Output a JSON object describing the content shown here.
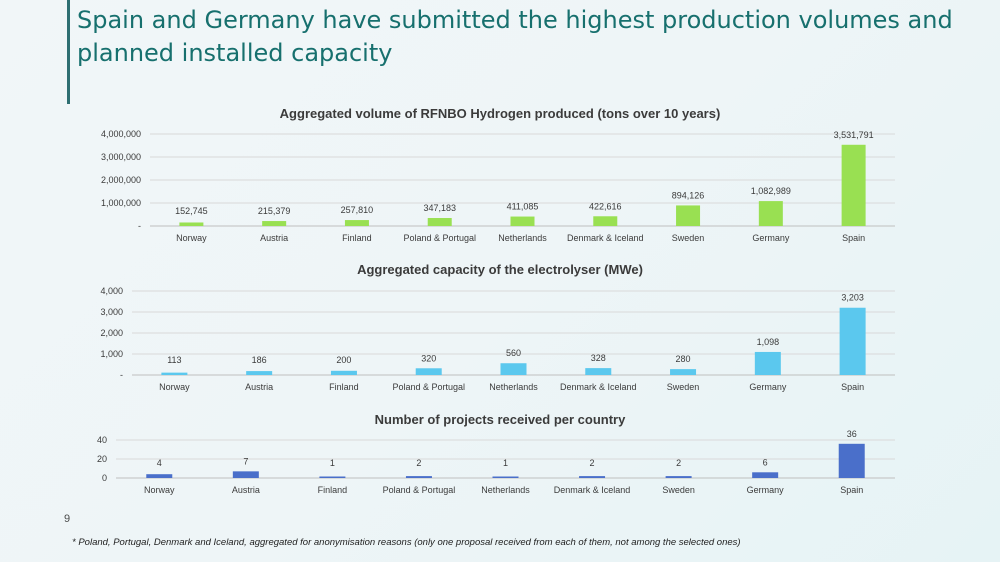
{
  "slide": {
    "title": "Spain and Germany have submitted the highest production volumes and planned installed capacity",
    "page_number": "9",
    "footnote": "* Poland, Portugal, Denmark and Iceland, aggregated for anonymisation reasons (only one proposal received from each of them, not among the selected ones)",
    "accent_color": "#2e6f72",
    "title_color": "#17706e"
  },
  "chart_data": [
    {
      "type": "bar",
      "title": "Aggregated volume of RFNBO Hydrogen produced (tons over 10 years)",
      "categories": [
        "Norway",
        "Austria",
        "Finland",
        "Poland & Portugal",
        "Netherlands",
        "Denmark & Iceland",
        "Sweden",
        "Germany",
        "Spain"
      ],
      "values": [
        152745,
        215379,
        257810,
        347183,
        411085,
        422616,
        894126,
        1082989,
        3531791
      ],
      "value_labels": [
        "152,745",
        "215,379",
        "257,810",
        "347,183",
        "411,085",
        "422,616",
        "894,126",
        "1,082,989",
        "3,531,791"
      ],
      "yticks": [
        "-",
        "1,000,000",
        "2,000,000",
        "3,000,000",
        "4,000,000"
      ],
      "ylim": [
        0,
        4000000
      ],
      "color": "#99e052",
      "grid": true
    },
    {
      "type": "bar",
      "title": "Aggregated capacity of the electrolyser (MWe)",
      "categories": [
        "Norway",
        "Austria",
        "Finland",
        "Poland & Portugal",
        "Netherlands",
        "Denmark & Iceland",
        "Sweden",
        "Germany",
        "Spain"
      ],
      "values": [
        113,
        186,
        200,
        320,
        560,
        328,
        280,
        1098,
        3203
      ],
      "value_labels": [
        "113",
        "186",
        "200",
        "320",
        "560",
        "328",
        "280",
        "1,098",
        "3,203"
      ],
      "yticks": [
        "-",
        "1,000",
        "2,000",
        "3,000",
        "4,000"
      ],
      "ylim": [
        0,
        4000
      ],
      "color": "#5bc8ee",
      "grid": true
    },
    {
      "type": "bar",
      "title": "Number of projects received per country",
      "categories": [
        "Norway",
        "Austria",
        "Finland",
        "Poland & Portugal",
        "Netherlands",
        "Denmark & Iceland",
        "Sweden",
        "Germany",
        "Spain"
      ],
      "values": [
        4,
        7,
        1,
        2,
        1,
        2,
        2,
        6,
        36
      ],
      "value_labels": [
        "4",
        "7",
        "1",
        "2",
        "1",
        "2",
        "2",
        "6",
        "36"
      ],
      "yticks": [
        "0",
        "20",
        "40"
      ],
      "ylim": [
        0,
        40
      ],
      "color": "#4a6fca",
      "grid": true
    }
  ]
}
